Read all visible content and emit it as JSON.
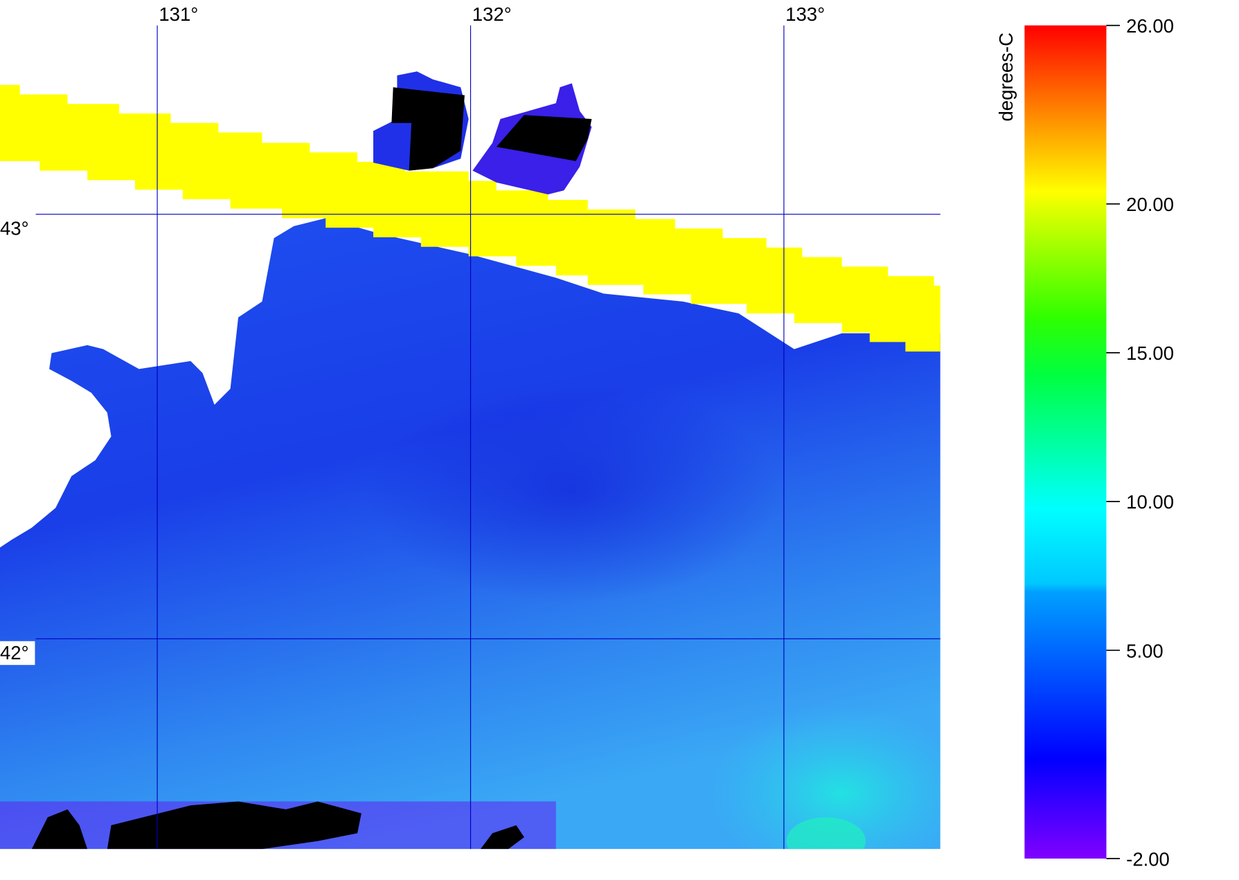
{
  "map": {
    "lon_ticks": [
      {
        "value": 131,
        "label": "131°"
      },
      {
        "value": 132,
        "label": "132°"
      },
      {
        "value": 133,
        "label": "133°"
      }
    ],
    "lat_ticks": [
      {
        "value": 43,
        "label": "43°"
      },
      {
        "value": 42,
        "label": "42°"
      }
    ],
    "colorbar": {
      "title": "degrees-C",
      "lim": [
        -2,
        26
      ],
      "ticks": [
        {
          "value": 26,
          "label": "26.00"
        },
        {
          "value": 20,
          "label": "20.00"
        },
        {
          "value": 15,
          "label": "15.00"
        },
        {
          "value": 10,
          "label": "10.00"
        },
        {
          "value": 5,
          "label": "5.00"
        },
        {
          "value": -2,
          "label": "-2.00"
        }
      ]
    }
  }
}
